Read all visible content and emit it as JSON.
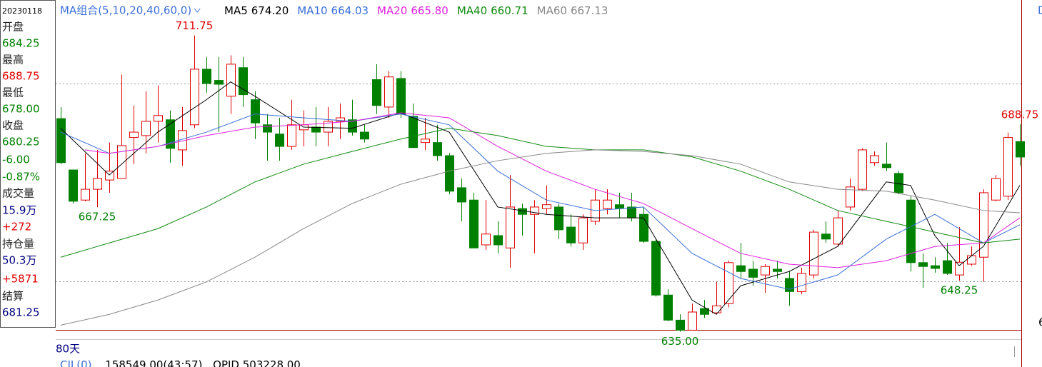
{
  "info_panel": {
    "rows": [
      {
        "text": "20230118",
        "color": "#000000"
      },
      {
        "text": "开盘",
        "color": "#222222"
      },
      {
        "text": "684.25",
        "color": "#008000"
      },
      {
        "text": "最高",
        "color": "#222222"
      },
      {
        "text": "688.75",
        "color": "#e00000"
      },
      {
        "text": "最低",
        "color": "#222222"
      },
      {
        "text": "678.00",
        "color": "#008000"
      },
      {
        "text": "收盘",
        "color": "#222222"
      },
      {
        "text": "680.25",
        "color": "#008000"
      },
      {
        "text": "-6.00",
        "color": "#008000"
      },
      {
        "text": "-0.87%",
        "color": "#008000"
      },
      {
        "text": "成交量",
        "color": "#222222"
      },
      {
        "text": "15.9万",
        "color": "#000080"
      },
      {
        "text": "+272",
        "color": "#e00000"
      },
      {
        "text": "持仓量",
        "color": "#222222"
      },
      {
        "text": "50.3万",
        "color": "#000080"
      },
      {
        "text": "+5871",
        "color": "#e00000"
      },
      {
        "text": "结算",
        "color": "#222222"
      },
      {
        "text": "681.25",
        "color": "#000080"
      }
    ]
  },
  "chart_data": {
    "type": "candlestick",
    "legend_title": "MA组合(5,10,20,40,60,0)",
    "ylim": [
      634,
      720
    ],
    "ylevels": [
      699.25,
      648
    ],
    "up_color": "#e00000",
    "down_color": "#008000",
    "open": [
      690.2,
      676.9,
      669.1,
      671.9,
      674.3,
      674.7,
      685.3,
      685.8,
      689.5,
      689.9,
      682.1,
      688.6,
      703.0,
      700.1,
      696.0,
      703.4,
      695.1,
      688.6,
      686.2,
      683.0,
      687.3,
      688.0,
      686.7,
      689.5,
      689.9,
      686.7,
      700.3,
      693.2,
      700.6,
      690.8,
      684.0,
      684.0,
      680.6,
      672.3,
      669.1,
      657.5,
      659.9,
      656.7,
      666.9,
      665.4,
      666.9,
      667.3,
      662.1,
      658.0,
      663.6,
      666.9,
      667.9,
      667.3,
      665.4,
      658.4,
      644.5,
      638.0,
      635.4,
      641.0,
      639.9,
      642.3,
      652.1,
      651.2,
      649.7,
      651.2,
      648.8,
      645.4,
      649.7,
      660.3,
      657.7,
      667.3,
      671.9,
      678.8,
      678.4,
      676.0,
      669.1,
      652.9,
      652.1,
      653.4,
      649.7,
      652.5,
      654.3,
      669.1,
      670.1,
      684.25
    ],
    "high": [
      693.2,
      676.9,
      681.2,
      682.1,
      684.0,
      701.6,
      693.6,
      697.3,
      698.8,
      692.3,
      693.2,
      711.75,
      706.2,
      706.2,
      706.6,
      706.2,
      697.3,
      691.4,
      690.4,
      695.1,
      692.3,
      693.2,
      693.2,
      694.1,
      695.1,
      688.6,
      704.3,
      702.5,
      702.5,
      694.1,
      690.4,
      688.6,
      681.2,
      674.7,
      671.0,
      669.1,
      663.6,
      675.6,
      668.2,
      669.1,
      672.9,
      668.2,
      665.4,
      665.4,
      671.9,
      671.9,
      671.0,
      671.0,
      667.3,
      659.0,
      646.0,
      639.5,
      642.3,
      643.2,
      647.9,
      653.4,
      658.0,
      653.4,
      652.5,
      653.4,
      650.6,
      651.6,
      661.4,
      663.6,
      666.4,
      674.7,
      682.5,
      681.7,
      684.0,
      676.6,
      670.1,
      655.3,
      654.3,
      658.0,
      662.1,
      657.1,
      671.9,
      675.6,
      686.6,
      688.75
    ],
    "low": [
      678.4,
      668.2,
      668.8,
      667.25,
      671.0,
      674.7,
      678.4,
      681.2,
      684.0,
      678.8,
      678.0,
      687.7,
      696.9,
      686.7,
      691.4,
      693.2,
      684.9,
      679.3,
      679.3,
      682.1,
      683.0,
      683.0,
      683.0,
      684.9,
      685.8,
      684.0,
      691.4,
      690.4,
      690.4,
      682.7,
      682.1,
      679.3,
      670.6,
      663.6,
      656.7,
      656.2,
      655.3,
      651.6,
      659.9,
      655.3,
      665.4,
      659.0,
      657.1,
      656.2,
      662.7,
      665.4,
      664.5,
      663.6,
      658.0,
      644.1,
      637.7,
      635.0,
      635.5,
      638.6,
      639.5,
      641.3,
      648.8,
      646.9,
      645.1,
      648.8,
      641.7,
      644.7,
      648.8,
      658.0,
      657.1,
      666.4,
      671.4,
      678.0,
      676.6,
      670.6,
      650.6,
      646.4,
      650.3,
      649.7,
      648.25,
      652.1,
      647.9,
      668.8,
      669.1,
      678.0
    ],
    "close": [
      678.8,
      668.8,
      671.9,
      674.7,
      676.6,
      683.2,
      686.7,
      689.5,
      691.0,
      682.5,
      687.1,
      703.0,
      699.3,
      699.1,
      704.3,
      696.4,
      689.1,
      686.7,
      683.0,
      688.6,
      688.6,
      686.7,
      689.5,
      690.4,
      686.7,
      684.9,
      693.6,
      701.0,
      691.4,
      682.7,
      684.9,
      680.6,
      671.4,
      668.6,
      656.7,
      660.3,
      657.5,
      667.3,
      665.4,
      667.3,
      667.9,
      661.4,
      658.0,
      664.5,
      669.1,
      669.1,
      666.9,
      664.5,
      658.4,
      644.5,
      638.0,
      635.4,
      640.1,
      639.5,
      641.7,
      652.9,
      650.6,
      649.1,
      651.9,
      650.6,
      645.4,
      650.1,
      660.8,
      659.0,
      664.5,
      672.5,
      682.1,
      680.6,
      677.5,
      671.0,
      652.9,
      651.9,
      651.4,
      650.1,
      653.0,
      654.7,
      671.0,
      674.7,
      685.3,
      680.25
    ],
    "annotations": [
      {
        "field": "high",
        "value": 711.75,
        "label": "711.75",
        "color": "#e00000"
      },
      {
        "field": "low",
        "value": 667.25,
        "label": "667.25",
        "color": "#008000"
      },
      {
        "field": "low",
        "value": 635,
        "label": "635.00",
        "color": "#008000"
      },
      {
        "field": "low",
        "value": 648.25,
        "label": "648.25",
        "color": "#008000"
      },
      {
        "field": "high",
        "value": 688.75,
        "label": "688.75",
        "color": "#e00000"
      }
    ],
    "series": [
      {
        "name": "MA5",
        "legend_value": "674.20",
        "color": "#000000",
        "x": [
          0,
          4,
          8,
          12,
          14,
          16,
          20,
          24,
          28,
          32,
          36,
          40,
          44,
          48,
          52,
          54,
          56,
          60,
          64,
          68,
          70,
          72,
          74,
          76,
          79
        ],
        "values": [
          687.7,
          675.6,
          686.7,
          695.1,
          699.7,
          696.0,
          688.0,
          687.7,
          691.7,
          686.7,
          667.3,
          665.4,
          664.5,
          664.5,
          643.2,
          639.5,
          646.9,
          650.6,
          657.1,
          673.8,
          672.9,
          659.9,
          652.1,
          657.1,
          672.9
        ]
      },
      {
        "name": "MA10",
        "legend_value": "664.03",
        "color": "#3a6fd8",
        "x": [
          0,
          4,
          8,
          12,
          16,
          20,
          24,
          28,
          32,
          36,
          40,
          44,
          48,
          52,
          56,
          60,
          64,
          68,
          72,
          76,
          79
        ],
        "values": [
          686.7,
          681.2,
          683.0,
          686.7,
          691.4,
          690.4,
          689.5,
          691.4,
          688.6,
          676.6,
          669.1,
          666.4,
          667.3,
          655.3,
          648.8,
          646.0,
          649.7,
          659.0,
          665.4,
          658.0,
          662.7
        ]
      },
      {
        "name": "MA20",
        "legend_value": "665.80",
        "color": "#e020e0",
        "x": [
          2,
          4,
          8,
          12,
          16,
          20,
          24,
          28,
          32,
          36,
          40,
          44,
          48,
          52,
          56,
          60,
          64,
          68,
          72,
          76,
          79
        ],
        "values": [
          682.1,
          681.2,
          683.0,
          685.8,
          688.0,
          688.6,
          689.5,
          691.7,
          690.4,
          683.0,
          676.6,
          671.9,
          668.2,
          661.7,
          655.3,
          652.5,
          651.6,
          653.4,
          657.1,
          658.0,
          664.5
        ]
      },
      {
        "name": "MA40",
        "legend_value": "660.71",
        "color": "#108a10",
        "x": [
          0,
          4,
          8,
          12,
          16,
          20,
          24,
          28,
          32,
          36,
          40,
          44,
          48,
          52,
          56,
          60,
          64,
          68,
          72,
          76,
          79
        ],
        "values": [
          654.3,
          658.0,
          661.7,
          667.3,
          673.8,
          678.4,
          681.7,
          684.9,
          687.7,
          685.8,
          683.0,
          682.1,
          682.1,
          680.3,
          676.6,
          671.9,
          666.4,
          663.6,
          660.8,
          658.0,
          659.0
        ]
      },
      {
        "name": "MA60",
        "legend_value": "667.13",
        "color": "#888888",
        "x": [
          0,
          4,
          8,
          12,
          16,
          20,
          24,
          28,
          32,
          36,
          40,
          44,
          48,
          52,
          56,
          60,
          64,
          68,
          72,
          76,
          79
        ],
        "values": [
          636.7,
          639.5,
          643.2,
          647.9,
          654.3,
          661.7,
          668.2,
          673.2,
          676.6,
          679.3,
          681.2,
          682.1,
          681.7,
          680.6,
          678.4,
          673.8,
          671.9,
          671.4,
          669.1,
          666.4,
          665.8
        ]
      }
    ]
  },
  "footer": {
    "period": "80天",
    "indicator": "CJL(0)",
    "volume": "158549.00(43:57)",
    "open_interest": "OPID 503228.00"
  },
  "edge_labels": [
    "D",
    "6"
  ]
}
